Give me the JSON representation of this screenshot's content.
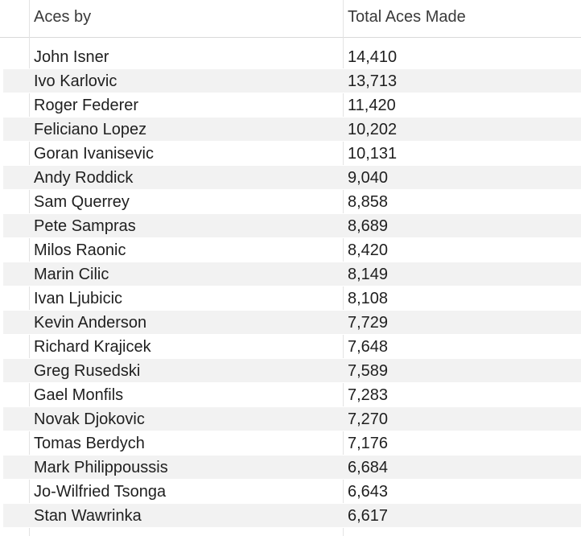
{
  "columns": {
    "name_header": "Aces by",
    "value_header": "Total Aces Made"
  },
  "rows": [
    {
      "name": "John Isner",
      "aces": "14,410"
    },
    {
      "name": "Ivo Karlovic",
      "aces": "13,713"
    },
    {
      "name": "Roger Federer",
      "aces": "11,420"
    },
    {
      "name": "Feliciano Lopez",
      "aces": "10,202"
    },
    {
      "name": "Goran Ivanisevic",
      "aces": "10,131"
    },
    {
      "name": "Andy Roddick",
      "aces": "9,040"
    },
    {
      "name": "Sam Querrey",
      "aces": "8,858"
    },
    {
      "name": "Pete Sampras",
      "aces": "8,689"
    },
    {
      "name": "Milos Raonic",
      "aces": "8,420"
    },
    {
      "name": "Marin Cilic",
      "aces": "8,149"
    },
    {
      "name": "Ivan Ljubicic",
      "aces": "8,108"
    },
    {
      "name": "Kevin Anderson",
      "aces": "7,729"
    },
    {
      "name": "Richard Krajicek",
      "aces": "7,648"
    },
    {
      "name": "Greg Rusedski",
      "aces": "7,589"
    },
    {
      "name": "Gael Monfils",
      "aces": "7,283"
    },
    {
      "name": "Novak Djokovic",
      "aces": "7,270"
    },
    {
      "name": "Tomas Berdych",
      "aces": "7,176"
    },
    {
      "name": "Mark Philippoussis",
      "aces": "6,684"
    },
    {
      "name": "Jo-Wilfried Tsonga",
      "aces": "6,643"
    },
    {
      "name": "Stan Wawrinka",
      "aces": "6,617"
    }
  ]
}
